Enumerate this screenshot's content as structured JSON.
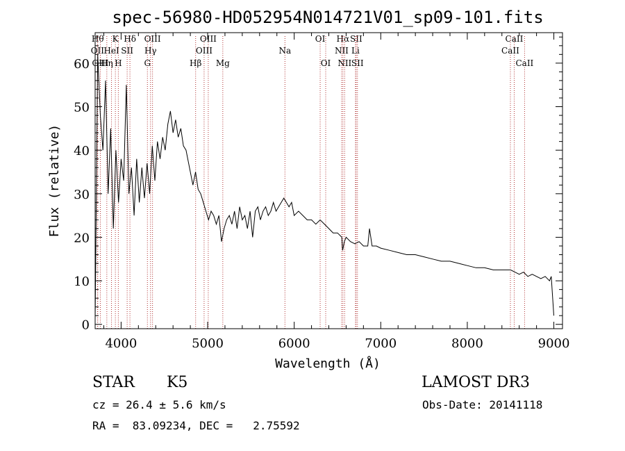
{
  "chart_data": {
    "type": "line",
    "title": "spec-56980-HD052954N014721V01_sp09-101.fits",
    "xlabel": "Wavelength (Å)",
    "ylabel": "Flux (relative)",
    "xlim": [
      3700,
      9100
    ],
    "ylim": [
      -1,
      67
    ],
    "xticks": [
      4000,
      5000,
      6000,
      7000,
      8000,
      9000
    ],
    "yticks": [
      0,
      10,
      20,
      30,
      40,
      50,
      60
    ],
    "series": [
      {
        "name": "spectrum",
        "x": [
          3700,
          3730,
          3760,
          3790,
          3820,
          3850,
          3880,
          3910,
          3940,
          3970,
          4000,
          4030,
          4060,
          4090,
          4120,
          4150,
          4180,
          4210,
          4240,
          4270,
          4300,
          4330,
          4360,
          4390,
          4420,
          4450,
          4480,
          4510,
          4540,
          4570,
          4600,
          4630,
          4660,
          4690,
          4720,
          4750,
          4780,
          4800,
          4830,
          4860,
          4890,
          4920,
          4950,
          4980,
          5010,
          5040,
          5070,
          5100,
          5130,
          5160,
          5190,
          5220,
          5250,
          5280,
          5310,
          5340,
          5370,
          5400,
          5430,
          5460,
          5490,
          5520,
          5550,
          5580,
          5610,
          5640,
          5670,
          5700,
          5730,
          5760,
          5790,
          5820,
          5850,
          5880,
          5910,
          5940,
          5970,
          6000,
          6050,
          6100,
          6150,
          6200,
          6250,
          6300,
          6350,
          6400,
          6450,
          6500,
          6550,
          6560,
          6580,
          6600,
          6650,
          6700,
          6750,
          6800,
          6850,
          6870,
          6900,
          6950,
          7000,
          7100,
          7200,
          7300,
          7400,
          7500,
          7600,
          7700,
          7800,
          7900,
          8000,
          8100,
          8200,
          8300,
          8400,
          8500,
          8550,
          8600,
          8650,
          8700,
          8750,
          8800,
          8850,
          8900,
          8950,
          8970,
          9000
        ],
        "y": [
          1,
          62,
          48,
          40,
          56,
          30,
          45,
          22,
          40,
          28,
          38,
          33,
          55,
          30,
          36,
          25,
          38,
          28,
          36,
          29,
          37,
          30,
          41,
          33,
          42,
          38,
          43,
          40,
          46,
          49,
          44,
          47,
          43,
          45,
          41,
          40,
          37,
          35,
          32,
          35,
          31,
          30,
          28,
          26,
          24,
          26,
          25,
          23,
          25,
          19,
          22,
          24,
          25,
          23,
          26,
          22,
          27,
          24,
          25,
          22,
          26,
          20,
          26,
          27,
          24,
          26,
          27,
          25,
          26,
          28,
          26,
          27,
          28,
          29,
          28,
          27,
          28,
          25,
          26,
          25,
          24,
          24,
          23,
          24,
          23,
          22,
          21,
          21,
          20,
          17,
          19,
          20,
          19,
          18.5,
          19,
          18,
          18,
          22,
          18,
          18,
          17.5,
          17,
          16.5,
          16,
          16,
          15.5,
          15,
          14.5,
          14.5,
          14,
          13.5,
          13,
          13,
          12.5,
          12.5,
          12.5,
          12,
          11.5,
          12,
          11,
          11.5,
          11,
          10.5,
          11,
          10,
          11,
          2
        ]
      }
    ],
    "lines": [
      {
        "name": "H-theta",
        "wavelength": 3730,
        "label": "Hθ",
        "row": 0
      },
      {
        "name": "O-II",
        "wavelength": 3727,
        "label": "OII",
        "row": 1
      },
      {
        "name": "O-III-hep",
        "wavelength": 3760,
        "label": "OIII",
        "row": 2
      },
      {
        "name": "K",
        "wavelength": 3934,
        "label": "K",
        "row": 0
      },
      {
        "name": "He-I",
        "wavelength": 3889,
        "label": "HeI",
        "row": 1
      },
      {
        "name": "H-eta",
        "wavelength": 3835,
        "label": "Hη",
        "row": 2
      },
      {
        "name": "H",
        "wavelength": 3968,
        "label": "H",
        "row": 2
      },
      {
        "name": "S-II-blue",
        "wavelength": 4070,
        "label": "SII",
        "row": 1
      },
      {
        "name": "H-delta",
        "wavelength": 4102,
        "label": "Hδ",
        "row": 0
      },
      {
        "name": "O-III-4363",
        "wavelength": 4363,
        "label": "OIII",
        "row": 0
      },
      {
        "name": "H-gamma",
        "wavelength": 4340,
        "label": "Hγ",
        "row": 1
      },
      {
        "name": "G",
        "wavelength": 4304,
        "label": "G",
        "row": 2
      },
      {
        "name": "H-beta",
        "wavelength": 4861,
        "label": "Hβ",
        "row": 2
      },
      {
        "name": "O-III-5007",
        "wavelength": 5007,
        "label": "OIII",
        "row": 0
      },
      {
        "name": "O-III-4959",
        "wavelength": 4959,
        "label": "OIII",
        "row": 1
      },
      {
        "name": "Mg",
        "wavelength": 5175,
        "label": "Mg",
        "row": 2
      },
      {
        "name": "Na",
        "wavelength": 5893,
        "label": "Na",
        "row": 1
      },
      {
        "name": "O-I-6300",
        "wavelength": 6300,
        "label": "OI",
        "row": 0
      },
      {
        "name": "O-I-6364",
        "wavelength": 6364,
        "label": "OI",
        "row": 2
      },
      {
        "name": "H-alpha",
        "wavelength": 6563,
        "label": "Hα",
        "row": 0
      },
      {
        "name": "N-II-6548",
        "wavelength": 6548,
        "label": "NII",
        "row": 1
      },
      {
        "name": "N-II-6583",
        "wavelength": 6583,
        "label": "NII",
        "row": 2
      },
      {
        "name": "S-II-6716",
        "wavelength": 6716,
        "label": "SII",
        "row": 0
      },
      {
        "name": "Li",
        "wavelength": 6708,
        "label": "Li",
        "row": 1
      },
      {
        "name": "S-II-6731",
        "wavelength": 6731,
        "label": "SII",
        "row": 2
      },
      {
        "name": "Ca-II-8542",
        "wavelength": 8542,
        "label": "CaII",
        "row": 0
      },
      {
        "name": "Ca-II-8498",
        "wavelength": 8498,
        "label": "CaII",
        "row": 1
      },
      {
        "name": "Ca-II-8662",
        "wavelength": 8662,
        "label": "CaII",
        "row": 2
      }
    ]
  },
  "info": {
    "class": "STAR",
    "subclass": "K5",
    "survey": "LAMOST DR3",
    "cz": "cz = 26.4 ± 5.6 km/s",
    "obs_date": "Obs-Date: 20141118",
    "coords": "RA =  83.09234, DEC =   2.75592"
  },
  "colors": {
    "spectrum": "#000000",
    "line_marker": "#b03030",
    "axis": "#000000"
  }
}
